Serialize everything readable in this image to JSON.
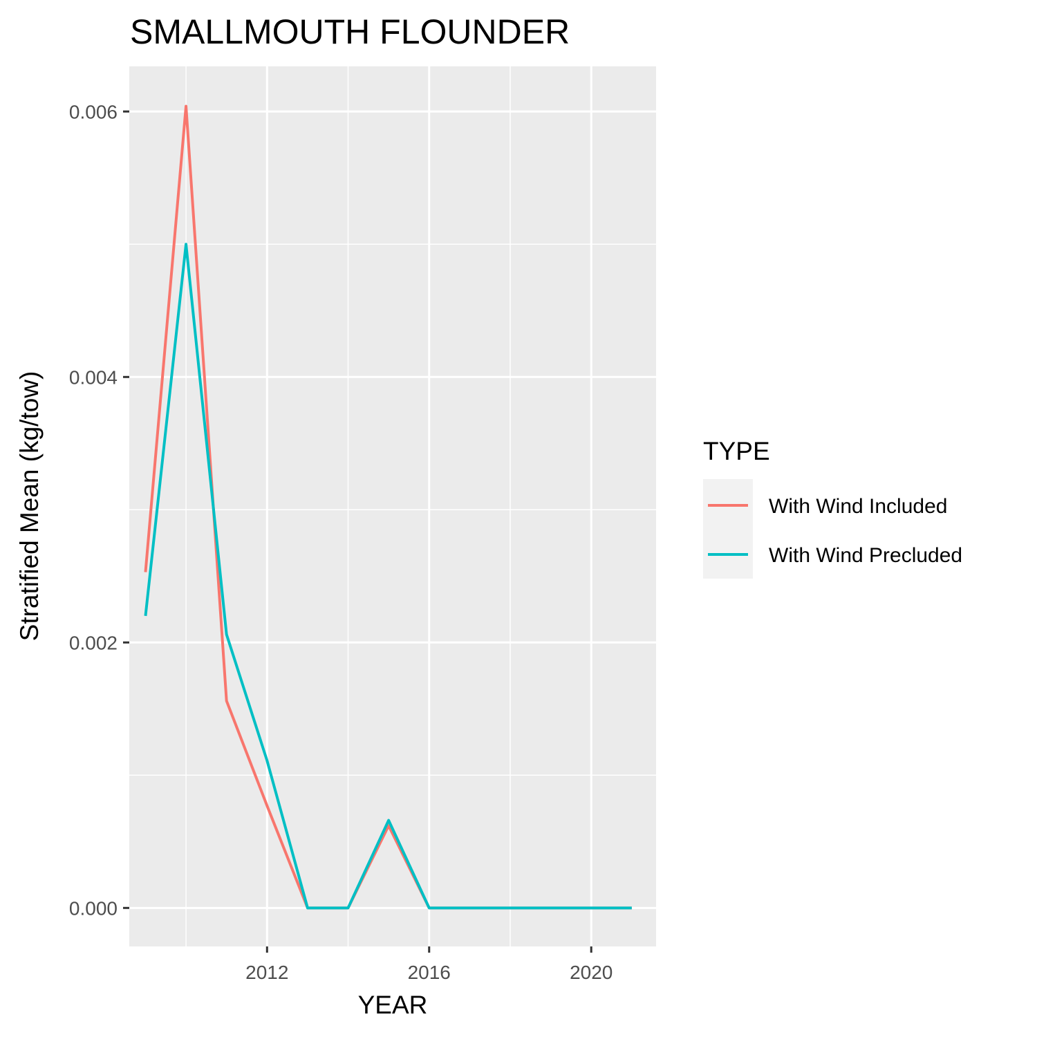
{
  "chart_data": {
    "type": "line",
    "title": "SMALLMOUTH FLOUNDER",
    "xlabel": "YEAR",
    "ylabel": "Stratified Mean (kg/tow)",
    "xlim": [
      2008.6,
      2021.6
    ],
    "ylim": [
      -0.00029,
      0.00634
    ],
    "x_ticks": [
      2012,
      2016,
      2020
    ],
    "x_tick_labels": [
      "2012",
      "2016",
      "2020"
    ],
    "x_minor_ticks": [
      2010,
      2014,
      2018
    ],
    "y_ticks": [
      0.0,
      0.002,
      0.004,
      0.006
    ],
    "y_tick_labels": [
      "0.000",
      "0.002",
      "0.004",
      "0.006"
    ],
    "y_minor_ticks": [
      0.001,
      0.003,
      0.005
    ],
    "grid": true,
    "background": "#ebebeb",
    "legend": {
      "title": "TYPE",
      "position": "right"
    },
    "series": [
      {
        "name": "With Wind Included",
        "color": "#f8766d",
        "x": [
          2009,
          2010,
          2011,
          2012,
          2013,
          2014,
          2015,
          2016,
          2017,
          2018,
          2019,
          2020,
          2021
        ],
        "values": [
          0.00253,
          0.00604,
          0.00156,
          0.00077,
          0.0,
          0.0,
          0.00062,
          0.0,
          0.0,
          0.0,
          0.0,
          0.0,
          0.0
        ]
      },
      {
        "name": "With Wind Precluded",
        "color": "#00bfc4",
        "x": [
          2009,
          2010,
          2011,
          2012,
          2013,
          2014,
          2015,
          2016,
          2017,
          2018,
          2019,
          2020,
          2021
        ],
        "values": [
          0.0022,
          0.005,
          0.00206,
          0.00111,
          0.0,
          0.0,
          0.00066,
          0.0,
          0.0,
          0.0,
          0.0,
          0.0,
          0.0
        ]
      }
    ]
  }
}
